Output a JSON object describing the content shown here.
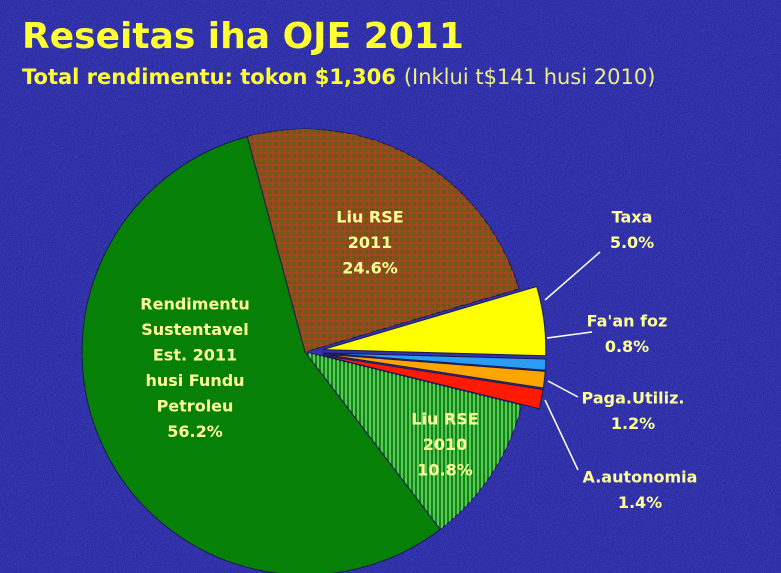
{
  "chart_data": {
    "type": "pie",
    "title": "Reseitas iha OJE 2011",
    "subtitle": "Total rendimentu: tokon $1,306",
    "subtitle_note": "(Inklui t$141 husi 2010)",
    "categories": [
      [
        "Liu RSE",
        "2011"
      ],
      [
        "Taxa"
      ],
      [
        "Fa'an foz"
      ],
      [
        "Paga.Utiliz."
      ],
      [
        "A.autonomia"
      ],
      [
        "Liu RSE",
        "2010"
      ],
      [
        "Rendimentu",
        "Sustentavel",
        "Est. 2011",
        "husi Fundu",
        "Petroleu"
      ]
    ],
    "values": [
      24.6,
      5.0,
      0.8,
      1.2,
      1.4,
      10.8,
      56.2
    ],
    "value_labels": [
      "24.6%",
      "5.0%",
      "0.8%",
      "1.2%",
      "1.4%",
      "10.8%",
      "56.2%"
    ],
    "colors": [
      "#6b5a12",
      "#ffff00",
      "#2a9df4",
      "#ffa500",
      "#ff1a00",
      "#0a8a0a",
      "#078007"
    ],
    "patterns": [
      "crosshatch",
      null,
      null,
      null,
      null,
      "vertical",
      null
    ],
    "exploded": [
      false,
      true,
      true,
      true,
      true,
      false,
      false
    ]
  }
}
